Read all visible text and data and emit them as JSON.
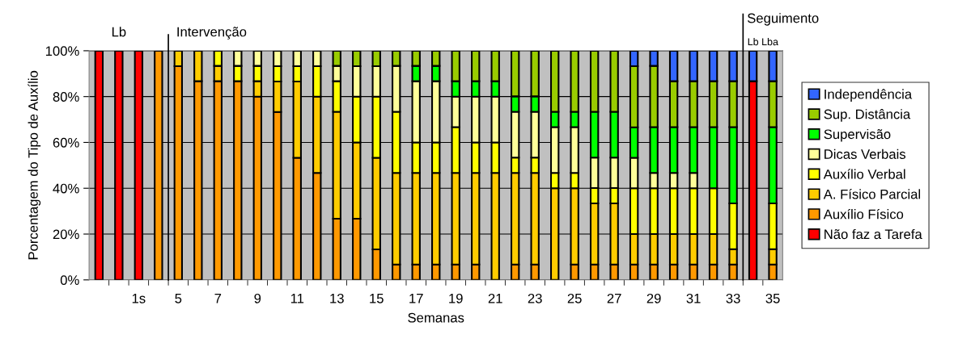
{
  "chart_data": {
    "type": "bar",
    "stacked": true,
    "xlabel": "Semanas",
    "ylabel": "Porcentagem do Tipo de Auxílio",
    "categories": [
      null,
      null,
      "1s",
      null,
      "5",
      null,
      "7",
      null,
      "9",
      null,
      "11",
      null,
      "13",
      null,
      "15",
      null,
      "17",
      null,
      "19",
      null,
      "21",
      null,
      "23",
      null,
      "25",
      null,
      "27",
      null,
      "29",
      null,
      "31",
      null,
      "33",
      null,
      "35"
    ],
    "series": [
      {
        "name": "Não faz a Tarefa",
        "color": "#ff0000",
        "values": [
          100,
          100,
          100,
          0,
          0,
          0,
          0,
          0,
          0,
          0,
          0,
          0,
          0,
          0,
          0,
          0,
          0,
          0,
          0,
          0,
          0,
          0,
          0,
          0,
          0,
          0,
          0,
          0,
          0,
          0,
          0,
          0,
          0,
          86.7,
          0
        ]
      },
      {
        "name": "Auxílio Físico",
        "color": "#ff9900",
        "values": [
          0,
          0,
          0,
          100,
          93.3,
          86.7,
          86.7,
          86.7,
          80,
          73.3,
          53.3,
          46.7,
          26.7,
          26.7,
          13.3,
          6.7,
          6.7,
          6.7,
          6.7,
          6.7,
          0,
          6.7,
          6.7,
          0,
          6.7,
          6.7,
          6.7,
          6.7,
          6.7,
          6.7,
          6.7,
          6.7,
          6.7,
          0,
          6.7
        ]
      },
      {
        "name": "A. Físico Parcial",
        "color": "#ffcc00",
        "values": [
          0,
          0,
          0,
          0,
          6.7,
          13.3,
          6.7,
          0,
          6.7,
          13.3,
          33.3,
          33.3,
          46.7,
          33.3,
          40,
          40,
          40,
          40,
          40,
          40,
          46.7,
          40,
          40,
          40,
          33.3,
          26.7,
          26.7,
          13.3,
          13.3,
          13.3,
          13.3,
          13.3,
          6.7,
          0,
          6.7
        ]
      },
      {
        "name": "Auxílio Verbal",
        "color": "#ffff00",
        "values": [
          0,
          0,
          0,
          0,
          0,
          0,
          6.6,
          6.7,
          6.7,
          6.7,
          6.7,
          13.3,
          13.3,
          20,
          26.7,
          26.7,
          13.3,
          13.3,
          20,
          13.3,
          13.3,
          6.7,
          6.7,
          6.7,
          6.7,
          6.7,
          6.7,
          20,
          20,
          20,
          20,
          20,
          20,
          0,
          20
        ]
      },
      {
        "name": "Dicas Verbais",
        "color": "#ffff99",
        "values": [
          0,
          0,
          0,
          0,
          0,
          0,
          0,
          6.6,
          6.6,
          6.7,
          6.7,
          6.7,
          6.7,
          13.3,
          13.3,
          20,
          26.7,
          26.7,
          13.3,
          20,
          20,
          20,
          20,
          20,
          20,
          13.3,
          13.3,
          13.3,
          6.7,
          6.7,
          6.7,
          0,
          0,
          0,
          0
        ]
      },
      {
        "name": "Supervisão",
        "color": "#00ff00",
        "values": [
          0,
          0,
          0,
          0,
          0,
          0,
          0,
          0,
          0,
          0,
          0,
          0,
          0,
          0,
          0,
          0,
          6.7,
          6.7,
          6.7,
          6.7,
          6.7,
          6.7,
          6.7,
          6.7,
          6.7,
          20,
          20,
          13.3,
          20,
          20,
          20,
          26.7,
          33.3,
          0,
          33.3
        ]
      },
      {
        "name": "Sup. Distância",
        "color": "#99cc00",
        "values": [
          0,
          0,
          0,
          0,
          0,
          0,
          0,
          0,
          0,
          0,
          0,
          0,
          6.6,
          6.7,
          6.7,
          6.6,
          6.6,
          6.6,
          13.3,
          13.3,
          13.3,
          19.9,
          19.9,
          26.6,
          26.6,
          26.6,
          26.6,
          26.7,
          26.7,
          20,
          20,
          20,
          20,
          0,
          20
        ]
      },
      {
        "name": "Independência",
        "color": "#3366ff",
        "values": [
          0,
          0,
          0,
          0,
          0,
          0,
          0,
          0,
          0,
          0,
          0,
          0,
          0,
          0,
          0,
          0,
          0,
          0,
          0,
          0,
          0,
          0,
          0,
          0,
          0,
          0,
          0,
          6.7,
          6.6,
          13.3,
          13.3,
          13.3,
          13.3,
          13.3,
          13.3
        ]
      }
    ],
    "ylim": [
      0,
      100
    ],
    "yticks": [
      {
        "value": 0,
        "label": "0%"
      },
      {
        "value": 20,
        "label": "20%"
      },
      {
        "value": 40,
        "label": "40%"
      },
      {
        "value": 60,
        "label": "60%"
      },
      {
        "value": 80,
        "label": "80%"
      },
      {
        "value": 100,
        "label": "100%"
      }
    ],
    "grid": "y",
    "legend": "right",
    "annotations": [
      "Lb",
      "Intervenção",
      "Seguimento",
      "Lb Lba"
    ]
  }
}
